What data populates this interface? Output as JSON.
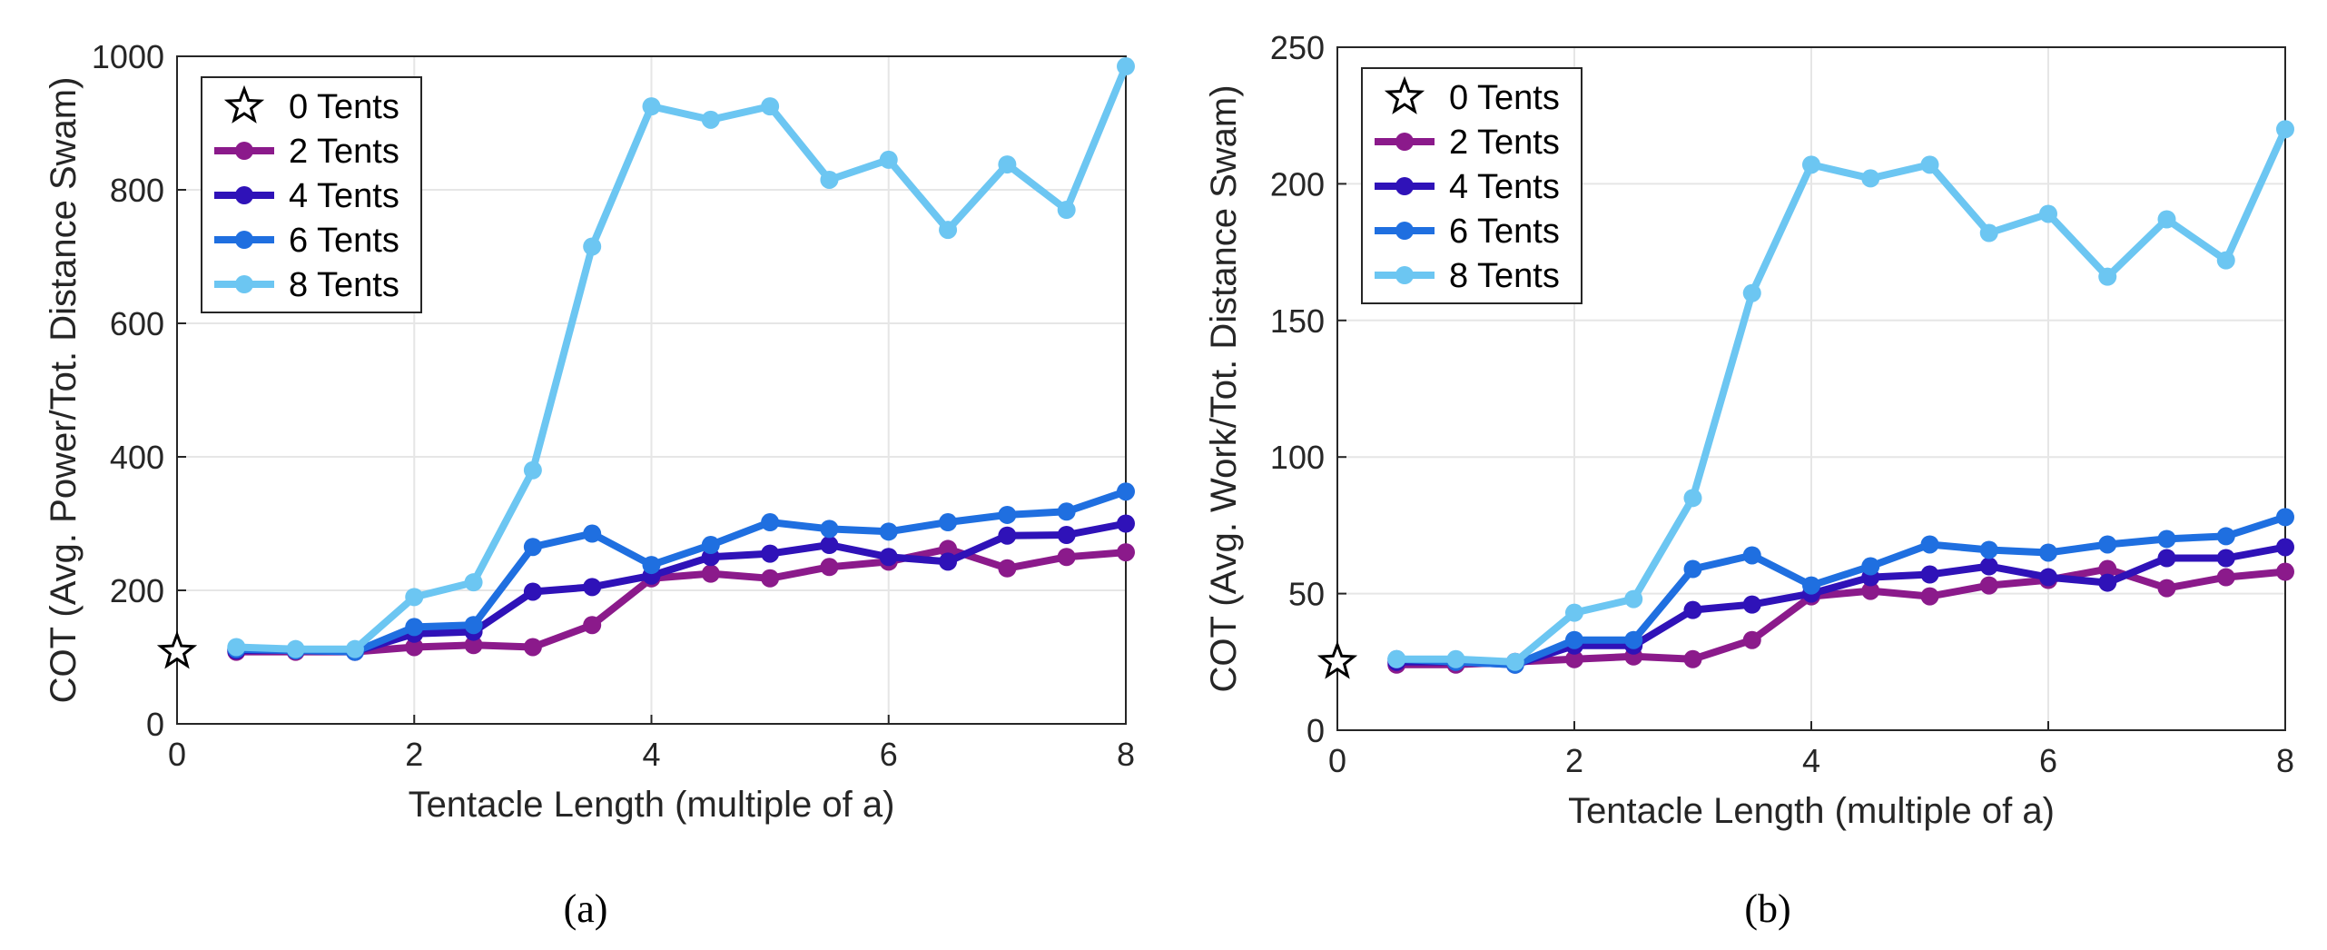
{
  "chart_data": [
    {
      "type": "line",
      "panel": "a",
      "caption": "(a)",
      "xlabel": "Tentacle Length (multiple of a)",
      "ylabel": "COT (Avg. Power/Tot. Distance Swam)",
      "xlim": [
        0,
        8
      ],
      "ylim": [
        0,
        1000
      ],
      "xticks": [
        0,
        2,
        4,
        6,
        8
      ],
      "yticks": [
        0,
        200,
        400,
        600,
        800,
        1000
      ],
      "grid": true,
      "legend_position": "top-left",
      "baseline": {
        "name": "0 Tents",
        "x": 0,
        "y": 108,
        "marker": "star",
        "color": "#ffffff"
      },
      "x": [
        0.5,
        1,
        1.5,
        2,
        2.5,
        3,
        3.5,
        4,
        4.5,
        5,
        5.5,
        6,
        6.5,
        7,
        7.5,
        8
      ],
      "series": [
        {
          "name": "2 Tents",
          "color": "#8b1a8b",
          "values": [
            108,
            108,
            108,
            115,
            118,
            115,
            148,
            218,
            225,
            218,
            235,
            243,
            262,
            233,
            250,
            257
          ]
        },
        {
          "name": "4 Tents",
          "color": "#2f12b8",
          "values": [
            110,
            110,
            108,
            135,
            138,
            198,
            205,
            222,
            250,
            255,
            268,
            250,
            243,
            282,
            283,
            300
          ]
        },
        {
          "name": "6 Tents",
          "color": "#1f6fe0",
          "values": [
            112,
            110,
            108,
            145,
            148,
            265,
            285,
            238,
            268,
            302,
            292,
            288,
            302,
            313,
            318,
            348
          ]
        },
        {
          "name": "8 Tents",
          "color": "#6cc6f2",
          "values": [
            115,
            112,
            112,
            190,
            212,
            380,
            715,
            925,
            905,
            925,
            815,
            845,
            740,
            838,
            770,
            985
          ]
        }
      ]
    },
    {
      "type": "line",
      "panel": "b",
      "caption": "(b)",
      "xlabel": "Tentacle Length (multiple of a)",
      "ylabel": "COT (Avg. Work/Tot. Distance Swam)",
      "xlim": [
        0,
        8
      ],
      "ylim": [
        0,
        250
      ],
      "xticks": [
        0,
        2,
        4,
        6,
        8
      ],
      "yticks": [
        0,
        50,
        100,
        150,
        200,
        250
      ],
      "grid": true,
      "legend_position": "top-left",
      "baseline": {
        "name": "0 Tents",
        "x": 0,
        "y": 25,
        "marker": "star",
        "color": "#ffffff"
      },
      "x": [
        0.5,
        1,
        1.5,
        2,
        2.5,
        3,
        3.5,
        4,
        4.5,
        5,
        5.5,
        6,
        6.5,
        7,
        7.5,
        8
      ],
      "series": [
        {
          "name": "2 Tents",
          "color": "#8b1a8b",
          "values": [
            24,
            24,
            25,
            26,
            27,
            26,
            33,
            49,
            51,
            49,
            53,
            55,
            59,
            52,
            56,
            58
          ]
        },
        {
          "name": "4 Tents",
          "color": "#2f12b8",
          "values": [
            25,
            25,
            24,
            31,
            31,
            44,
            46,
            50,
            56,
            57,
            60,
            56,
            54,
            63,
            63,
            67
          ]
        },
        {
          "name": "6 Tents",
          "color": "#1f6fe0",
          "values": [
            26,
            25,
            24,
            33,
            33,
            59,
            64,
            53,
            60,
            68,
            66,
            65,
            68,
            70,
            71,
            78
          ]
        },
        {
          "name": "8 Tents",
          "color": "#6cc6f2",
          "values": [
            26,
            26,
            25,
            43,
            48,
            85,
            160,
            207,
            202,
            207,
            182,
            189,
            166,
            187,
            172,
            220
          ]
        }
      ]
    }
  ]
}
